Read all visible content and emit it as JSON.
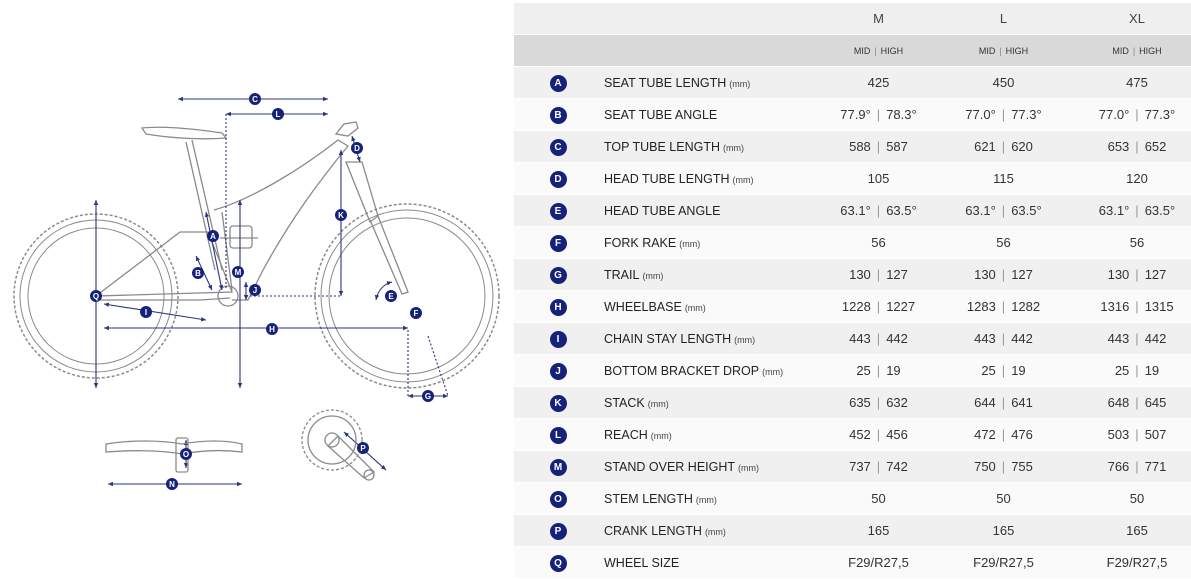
{
  "table": {
    "sizes": [
      "M",
      "L",
      "XL"
    ],
    "sub_low": "MID",
    "sub_high": "HIGH",
    "rows": [
      {
        "letter": "A",
        "label": "SEAT TUBE LENGTH",
        "unit": "(mm)",
        "values": [
          [
            "425"
          ],
          [
            "450"
          ],
          [
            "475"
          ]
        ]
      },
      {
        "letter": "B",
        "label": "SEAT TUBE ANGLE",
        "unit": "",
        "values": [
          [
            "77.9°",
            "78.3°"
          ],
          [
            "77.0°",
            "77.3°"
          ],
          [
            "77.0°",
            "77.3°"
          ]
        ]
      },
      {
        "letter": "C",
        "label": "TOP TUBE LENGTH",
        "unit": "(mm)",
        "values": [
          [
            "588",
            "587"
          ],
          [
            "621",
            "620"
          ],
          [
            "653",
            "652"
          ]
        ]
      },
      {
        "letter": "D",
        "label": "HEAD TUBE LENGTH",
        "unit": "(mm)",
        "values": [
          [
            "105"
          ],
          [
            "115"
          ],
          [
            "120"
          ]
        ]
      },
      {
        "letter": "E",
        "label": "HEAD TUBE ANGLE",
        "unit": "",
        "values": [
          [
            "63.1°",
            "63.5°"
          ],
          [
            "63.1°",
            "63.5°"
          ],
          [
            "63.1°",
            "63.5°"
          ]
        ]
      },
      {
        "letter": "F",
        "label": "FORK RAKE",
        "unit": "(mm)",
        "values": [
          [
            "56"
          ],
          [
            "56"
          ],
          [
            "56"
          ]
        ]
      },
      {
        "letter": "G",
        "label": "TRAIL",
        "unit": "(mm)",
        "values": [
          [
            "130",
            "127"
          ],
          [
            "130",
            "127"
          ],
          [
            "130",
            "127"
          ]
        ]
      },
      {
        "letter": "H",
        "label": "WHEELBASE",
        "unit": "(mm)",
        "values": [
          [
            "1228",
            "1227"
          ],
          [
            "1283",
            "1282"
          ],
          [
            "1316",
            "1315"
          ]
        ]
      },
      {
        "letter": "I",
        "label": "CHAIN STAY LENGTH",
        "unit": "(mm)",
        "values": [
          [
            "443",
            "442"
          ],
          [
            "443",
            "442"
          ],
          [
            "443",
            "442"
          ]
        ]
      },
      {
        "letter": "J",
        "label": "BOTTOM BRACKET DROP",
        "unit": "(mm)",
        "values": [
          [
            "25",
            "19"
          ],
          [
            "25",
            "19"
          ],
          [
            "25",
            "19"
          ]
        ]
      },
      {
        "letter": "K",
        "label": "STACK",
        "unit": "(mm)",
        "values": [
          [
            "635",
            "632"
          ],
          [
            "644",
            "641"
          ],
          [
            "648",
            "645"
          ]
        ]
      },
      {
        "letter": "L",
        "label": "REACH",
        "unit": "(mm)",
        "values": [
          [
            "452",
            "456"
          ],
          [
            "472",
            "476"
          ],
          [
            "503",
            "507"
          ]
        ]
      },
      {
        "letter": "M",
        "label": "STAND OVER HEIGHT",
        "unit": "(mm)",
        "values": [
          [
            "737",
            "742"
          ],
          [
            "750",
            "755"
          ],
          [
            "766",
            "771"
          ]
        ]
      },
      {
        "letter": "O",
        "label": "STEM LENGTH",
        "unit": "(mm)",
        "values": [
          [
            "50"
          ],
          [
            "50"
          ],
          [
            "50"
          ]
        ]
      },
      {
        "letter": "P",
        "label": "CRANK LENGTH",
        "unit": "(mm)",
        "values": [
          [
            "165"
          ],
          [
            "165"
          ],
          [
            "165"
          ]
        ]
      },
      {
        "letter": "Q",
        "label": "WHEEL SIZE",
        "unit": "",
        "values": [
          [
            "F29/R27,5"
          ],
          [
            "F29/R27,5"
          ],
          [
            "F29/R27,5"
          ]
        ]
      }
    ]
  },
  "diagram": {
    "markers": [
      "A",
      "B",
      "C",
      "D",
      "E",
      "F",
      "G",
      "H",
      "I",
      "J",
      "K",
      "L",
      "M",
      "N",
      "O",
      "P",
      "Q"
    ]
  },
  "colors": {
    "accent": "#16217a",
    "line": "#2a3580",
    "frame": "#8a8a8a",
    "row_odd": "#f0f0f0",
    "row_even": "#fafafa",
    "header_top": "#efefef",
    "header_sub": "#d9d9d9"
  }
}
